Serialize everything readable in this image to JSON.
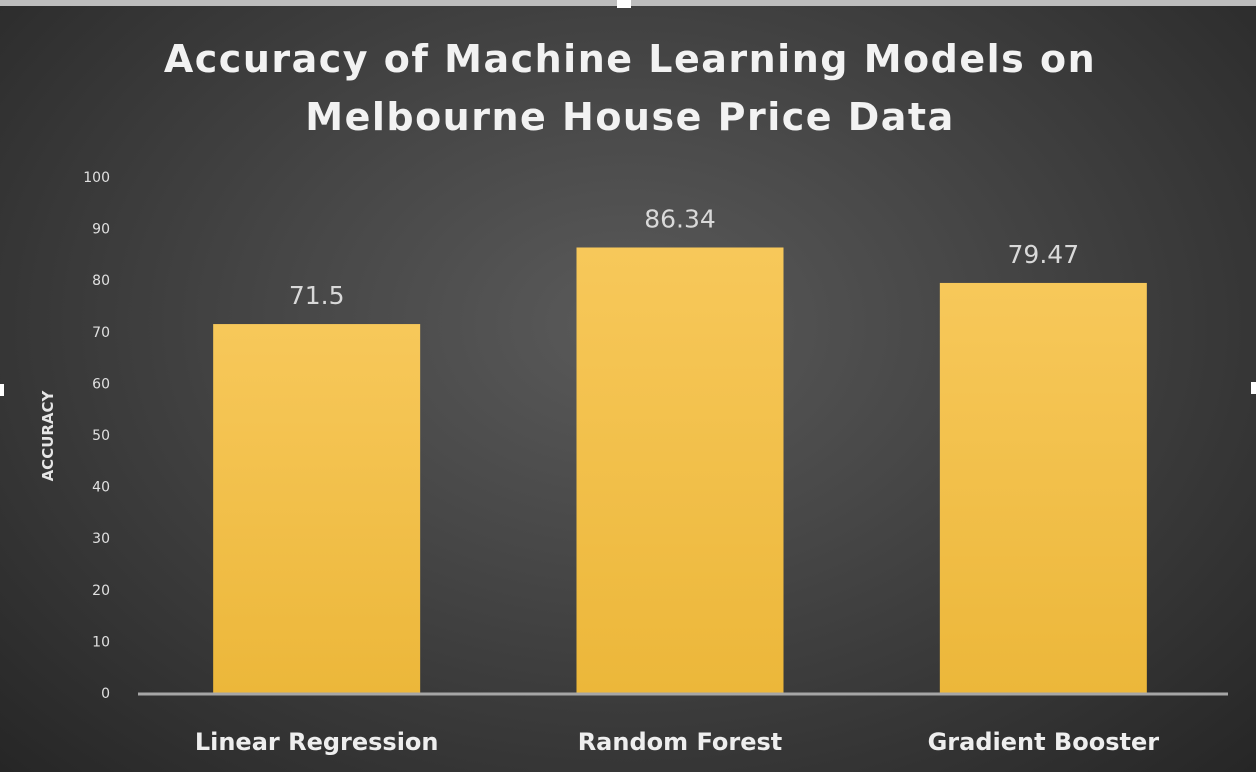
{
  "chart_data": {
    "type": "bar",
    "title": "Accuracy of Machine Learning Models on Melbourne House Price Data",
    "xlabel": "",
    "ylabel": "ACCURACY",
    "categories": [
      "Linear Regression",
      "Random Forest",
      "Gradient Booster"
    ],
    "values": [
      71.5,
      86.34,
      79.47
    ],
    "value_labels": [
      "71.5",
      "86.34",
      "79.47"
    ],
    "ylim": [
      0,
      100
    ],
    "yticks": [
      "0",
      "10",
      "20",
      "30",
      "40",
      "50",
      "60",
      "70",
      "80",
      "90",
      "100"
    ],
    "grid": false,
    "legend": "none",
    "colors": {
      "bar_top": "#f7c85a",
      "bar_bottom": "#ecb73a",
      "axis_line": "#a6a6a6",
      "tick_text": "#e0e0e0",
      "data_label": "#d9d9d9",
      "category_text": "#eeeeee"
    }
  }
}
